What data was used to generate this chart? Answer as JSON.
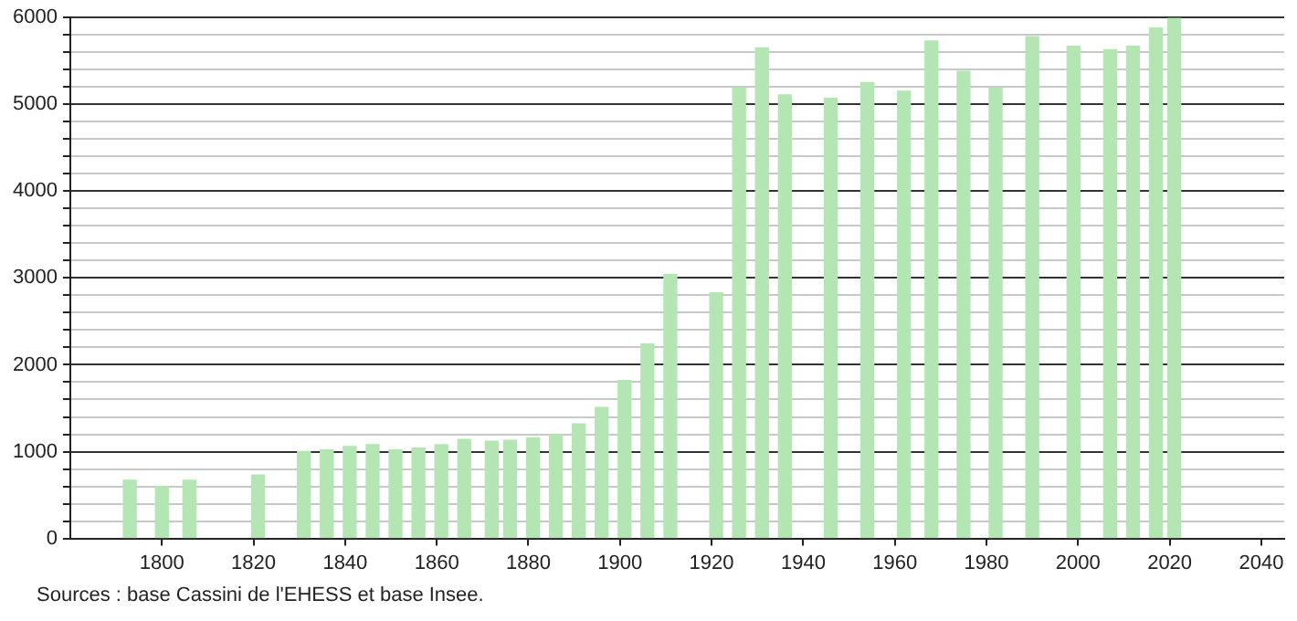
{
  "chart_data": {
    "type": "bar",
    "x": [
      1793,
      1800,
      1806,
      1821,
      1831,
      1836,
      1841,
      1846,
      1851,
      1856,
      1861,
      1866,
      1872,
      1876,
      1881,
      1886,
      1891,
      1896,
      1901,
      1906,
      1911,
      1921,
      1926,
      1931,
      1936,
      1946,
      1954,
      1962,
      1968,
      1975,
      1982,
      1990,
      1999,
      2006,
      2007,
      2012,
      2017,
      2021
    ],
    "values": [
      670,
      600,
      670,
      730,
      1000,
      1020,
      1060,
      1080,
      1020,
      1040,
      1080,
      1140,
      1120,
      1130,
      1160,
      1190,
      1320,
      1510,
      1820,
      2240,
      3040,
      2830,
      5190,
      5650,
      5110,
      5070,
      5250,
      5150,
      5730,
      5380,
      5190,
      5780,
      5670,
      null,
      5630,
      5670,
      5880,
      5990
    ],
    "color": "#b3e6b3",
    "xlim": [
      1780,
      2045
    ],
    "xticks": [
      1800,
      1820,
      1840,
      1860,
      1880,
      1900,
      1920,
      1940,
      1960,
      1980,
      2000,
      2020,
      2040
    ],
    "ylim": [
      0,
      6000
    ],
    "yticks": [
      0,
      {
        "value": 200,
        "label": null
      },
      {
        "value": 400,
        "label": null
      },
      {
        "value": 600,
        "label": null
      },
      {
        "value": 800,
        "label": null
      },
      1000,
      {
        "value": 1200,
        "label": null
      },
      {
        "value": 1400,
        "label": null
      },
      {
        "value": 1600,
        "label": null
      },
      {
        "value": 1800,
        "label": null
      },
      2000,
      {
        "value": 2200,
        "label": null
      },
      {
        "value": 2400,
        "label": null
      },
      {
        "value": 2600,
        "label": null
      },
      {
        "value": 2800,
        "label": null
      },
      3000,
      {
        "value": 3200,
        "label": null
      },
      {
        "value": 3400,
        "label": null
      },
      {
        "value": 3600,
        "label": null
      },
      {
        "value": 3800,
        "label": null
      },
      4000,
      {
        "value": 4200,
        "label": null
      },
      {
        "value": 4400,
        "label": null
      },
      {
        "value": 4600,
        "label": null
      },
      {
        "value": 4800,
        "label": null
      },
      5000,
      {
        "value": 5200,
        "label": null
      },
      {
        "value": 5400,
        "label": null
      },
      {
        "value": 5600,
        "label": null
      },
      {
        "value": 5800,
        "label": null
      },
      6000
    ],
    "grid": "y",
    "annotations": [
      "Sources : base Cassini de l'EHESS et base Insee."
    ]
  }
}
